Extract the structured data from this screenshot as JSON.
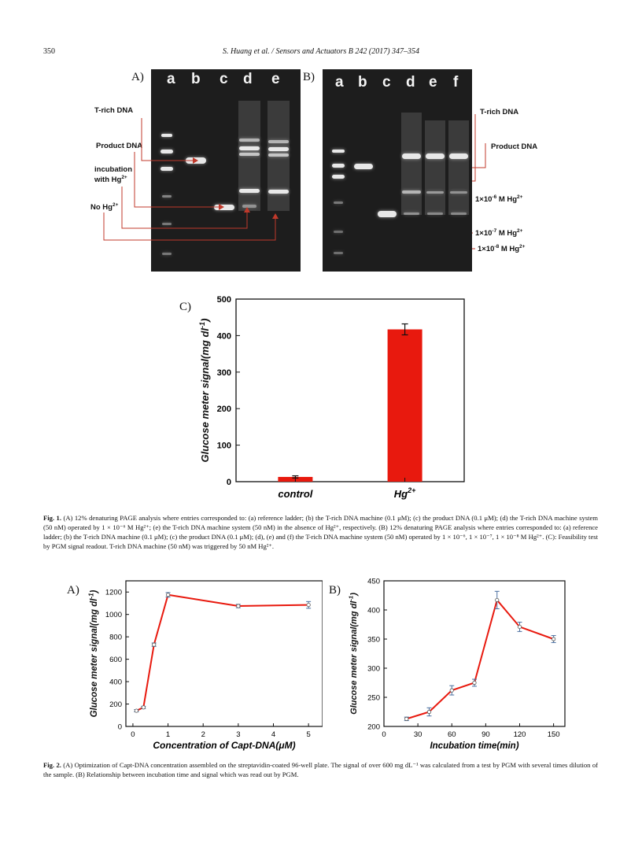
{
  "header": {
    "page_number": "350",
    "running_head": "S. Huang et al. / Sensors and Actuators B 242 (2017) 347–354"
  },
  "fig1": {
    "panel_a": {
      "letter": "A)",
      "lanes": [
        "a",
        "b",
        "c",
        "d",
        "e"
      ],
      "labels": {
        "t_rich": "T-rich DNA",
        "product": "Product DNA",
        "incubation_line1": "incubation",
        "incubation_line2": "with Hg",
        "no_hg": "No Hg",
        "ion_charge": "2+"
      }
    },
    "panel_b": {
      "letter": "B)",
      "lanes": [
        "a",
        "b",
        "c",
        "d",
        "e",
        "f"
      ],
      "labels": {
        "t_rich": "T-rich DNA",
        "product": "Product DNA",
        "conc_1_prefix": "1×10",
        "conc_1_exp": "-6",
        "conc_2_prefix": "1×10",
        "conc_2_exp": "-7",
        "conc_3_prefix": "1×10",
        "conc_3_exp": "-8",
        "conc_suffix": " M Hg",
        "ion_charge": "2+"
      }
    },
    "panel_c": {
      "letter": "C)"
    },
    "caption_label": "Fig. 1.",
    "caption_text": "(A) 12% denaturing PAGE analysis where entries corresponded to: (a) reference ladder; (b) the T-rich DNA machine (0.1 μM); (c) the product DNA (0.1 μM); (d) the T-rich DNA machine system (50 nM) operated by 1 × 10⁻⁶ M Hg²⁺; (e) the T-rich DNA machine system (50 nM) in the absence of Hg²⁺, respectively. (B) 12% denaturing PAGE analysis where entries corresponded to: (a) reference ladder; (b) the T-rich DNA machine (0.1 μM); (c) the product DNA (0.1 μM); (d), (e) and (f) the T-rich DNA machine system (50 nM) operated by 1 × 10⁻⁶, 1 × 10⁻⁷, 1 × 10⁻⁸ M Hg²⁺. (C): Feasibility test by PGM signal readout. T-rich DNA machine (50 nM) was triggered by 50 nM Hg²⁺."
  },
  "fig2": {
    "panel_a": {
      "letter": "A)"
    },
    "panel_b": {
      "letter": "B)"
    },
    "caption_label": "Fig. 2.",
    "caption_text": "(A) Optimization of Capt-DNA concentration assembled on the streptavidin-coated 96-well plate. The signal of over 600 mg dL⁻¹ was calculated from a test by PGM with several times dilution of the sample. (B) Relationship between incubation time and signal which was read out by PGM."
  },
  "chart_data": [
    {
      "id": "fig1c",
      "type": "bar",
      "categories": [
        "control",
        "Hg"
      ],
      "category_superscripts": [
        "",
        "2+"
      ],
      "values": [
        13,
        417
      ],
      "errors": [
        3,
        15
      ],
      "ylabel": "Glucose meter signal(mg dl",
      "ylabel_sup": "-1",
      "ylabel_close": ")",
      "ylim": [
        0,
        500
      ],
      "yticks": [
        0,
        100,
        200,
        300,
        400,
        500
      ],
      "bar_color": "#e8190e"
    },
    {
      "id": "fig2a",
      "type": "line",
      "x": [
        0.1,
        0.3,
        0.6,
        1,
        3,
        5
      ],
      "y": [
        140,
        170,
        730,
        1175,
        1075,
        1085
      ],
      "errors": [
        10,
        10,
        15,
        20,
        15,
        30
      ],
      "xlabel": "Concentration of Capt-DNA(μM)",
      "ylabel": "Glucose meter signal(mg dl",
      "ylabel_sup": "-1",
      "ylabel_close": ")",
      "xlim": [
        -0.2,
        5.4
      ],
      "ylim": [
        0,
        1300
      ],
      "xticks": [
        0,
        1,
        2,
        3,
        4,
        5
      ],
      "yticks": [
        0,
        200,
        400,
        600,
        800,
        1000,
        1200
      ],
      "line_color": "#e8190e"
    },
    {
      "id": "fig2b",
      "type": "line",
      "x": [
        20,
        40,
        60,
        80,
        100,
        120,
        150
      ],
      "y": [
        213,
        225,
        262,
        275,
        417,
        371,
        350
      ],
      "errors": [
        3,
        7,
        8,
        6,
        15,
        8,
        6
      ],
      "xlabel": "Incubation time(min)",
      "ylabel": "Glucose meter signal(mg dl",
      "ylabel_sup": "-1",
      "ylabel_close": ")",
      "xlim": [
        0,
        160
      ],
      "ylim": [
        200,
        450
      ],
      "xticks": [
        0,
        30,
        60,
        90,
        120,
        150
      ],
      "yticks": [
        200,
        250,
        300,
        350,
        400,
        450
      ],
      "line_color": "#e8190e"
    }
  ]
}
